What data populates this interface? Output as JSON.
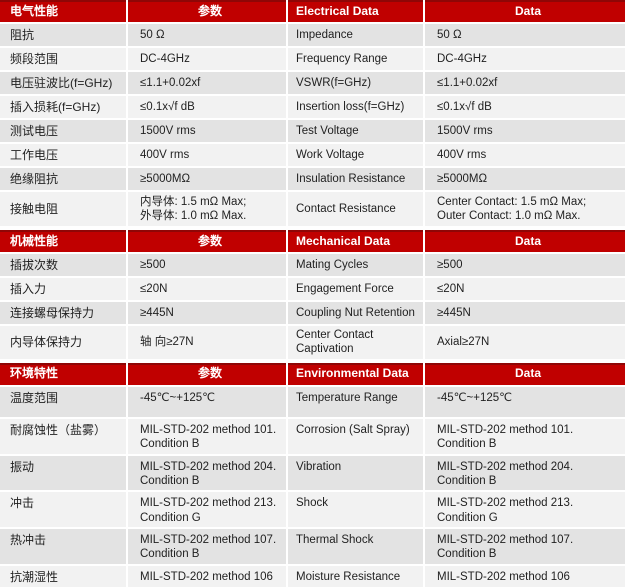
{
  "palette": {
    "header_bg": "#c00000",
    "header_text": "#ffffff",
    "row_dark": "#e3e3e3",
    "row_light": "#f2f2f2",
    "text_color": "#1f1f1f"
  },
  "sections": [
    {
      "title_cn": "电气性能",
      "param_header": "参数",
      "title_en": "Electrical Data",
      "data_header": "Data",
      "rows": [
        {
          "cn": "阻抗",
          "cn_val": "50 Ω",
          "en": "Impedance",
          "en_val": "50 Ω"
        },
        {
          "cn": "频段范围",
          "cn_val": "DC-4GHz",
          "en": "Frequency Range",
          "en_val": "DC-4GHz"
        },
        {
          "cn": "电压驻波比(f=GHz)",
          "cn_val": "≤1.1+0.02xf",
          "en": "VSWR(f=GHz)",
          "en_val": "≤1.1+0.02xf"
        },
        {
          "cn": "插入损耗(f=GHz)",
          "cn_val": "≤0.1x√f dB",
          "en": "Insertion loss(f=GHz)",
          "en_val": "≤0.1x√f dB"
        },
        {
          "cn": "测试电压",
          "cn_val": "1500V rms",
          "en": "Test Voltage",
          "en_val": "1500V rms"
        },
        {
          "cn": "工作电压",
          "cn_val": "400V rms",
          "en": "Work Voltage",
          "en_val": "400V rms"
        },
        {
          "cn": "绝缘阻抗",
          "cn_val": "≥5000MΩ",
          "en": "Insulation Resistance",
          "en_val": "≥5000MΩ"
        },
        {
          "cn": "接触电阻",
          "cn_val": "内导体: 1.5 mΩ Max;\n外导体: 1.0 mΩ Max.",
          "en": "Contact Resistance",
          "en_val": "Center Contact: 1.5 mΩ Max;\nOuter Contact:  1.0  mΩ  Max."
        }
      ]
    },
    {
      "title_cn": "机械性能",
      "param_header": "参数",
      "title_en": "Mechanical Data",
      "data_header": "Data",
      "rows": [
        {
          "cn": "插拔次数",
          "cn_val": "≥500",
          "en": "Mating Cycles",
          "en_val": "≥500"
        },
        {
          "cn": "插入力",
          "cn_val": "≤20N",
          "en": "Engagement Force",
          "en_val": "≤20N"
        },
        {
          "cn": "连接螺母保持力",
          "cn_val": "≥445N",
          "en": "Coupling Nut Retention",
          "en_val": "≥445N"
        },
        {
          "cn": "内导体保持力",
          "cn_val": "轴 向≥27N",
          "en": "Center Contact Captivation",
          "en_val": "Axial≥27N"
        }
      ]
    },
    {
      "title_cn": "环境特性",
      "param_header": "参数",
      "title_en": "Environmental Data",
      "data_header": "Data",
      "rows": [
        {
          "cn": "温度范围",
          "cn_val": "-45℃~+125℃",
          "en": "Temperature Range",
          "en_val": "-45℃~+125℃"
        },
        {
          "cn": "耐腐蚀性（盐雾）",
          "cn_val": "MIL-STD-202 method 101.\nCondition B",
          "en": "Corrosion (Salt Spray)",
          "en_val": "MIL-STD-202 method 101. Condition B"
        },
        {
          "cn": "振动",
          "cn_val": "MIL-STD-202 method 204.\nCondition B",
          "en": "Vibration",
          "en_val": "MIL-STD-202 method 204. Condition B"
        },
        {
          "cn": "冲击",
          "cn_val": "MIL-STD-202 method 213.\nCondition G",
          "en": "Shock",
          "en_val": "MIL-STD-202 method 213. Condition G"
        },
        {
          "cn": "热冲击",
          "cn_val": "MIL-STD-202 method 107.\nCondition B",
          "en": "Thermal Shock",
          "en_val": "MIL-STD-202 method 107. Condition B"
        },
        {
          "cn": "抗潮湿性",
          "cn_val": "MIL-STD-202 method 106",
          "en": "Moisture Resistance",
          "en_val": "MIL-STD-202 method 106"
        }
      ]
    }
  ]
}
